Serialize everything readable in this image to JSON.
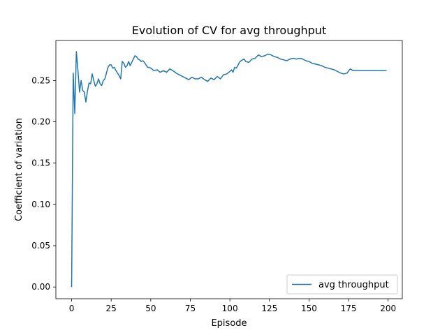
{
  "chart_data": {
    "type": "line",
    "title": "Evolution of CV for avg throughput",
    "xlabel": "Episode",
    "ylabel": "Coefficient of variation",
    "xlim": [
      -9.95,
      208.95
    ],
    "ylim": [
      -0.0142,
      0.2985
    ],
    "xticks": [
      0,
      25,
      50,
      75,
      100,
      125,
      150,
      175,
      200
    ],
    "yticks": [
      0.0,
      0.05,
      0.1,
      0.15,
      0.2,
      0.25
    ],
    "ytick_labels": [
      "0.00",
      "0.05",
      "0.10",
      "0.15",
      "0.20",
      "0.25"
    ],
    "grid": false,
    "legend": {
      "placement": "lower-right"
    },
    "series": [
      {
        "name": "avg throughput",
        "color": "#1f77b4",
        "x": [
          0,
          1,
          2,
          3,
          4,
          5,
          6,
          7,
          8,
          9,
          10,
          11,
          12,
          13,
          14,
          15,
          16,
          17,
          18,
          19,
          20,
          21,
          22,
          23,
          24,
          25,
          26,
          27,
          28,
          29,
          30,
          31,
          32,
          33,
          34,
          35,
          36,
          37,
          38,
          39,
          40,
          41,
          42,
          43,
          44,
          45,
          46,
          47,
          48,
          49,
          50,
          52,
          54,
          56,
          58,
          60,
          62,
          64,
          66,
          68,
          70,
          72,
          74,
          76,
          78,
          80,
          82,
          84,
          86,
          88,
          90,
          92,
          94,
          96,
          98,
          100,
          101,
          102,
          103,
          104,
          105,
          106,
          107,
          108,
          109,
          110,
          112,
          114,
          116,
          118,
          120,
          122,
          124,
          126,
          128,
          130,
          132,
          134,
          136,
          138,
          140,
          142,
          144,
          146,
          148,
          150,
          152,
          154,
          156,
          158,
          160,
          162,
          164,
          166,
          168,
          170,
          172,
          174,
          176,
          178,
          180,
          182,
          184,
          186,
          188,
          190,
          192,
          194,
          196,
          198,
          199
        ],
        "y": [
          0.0,
          0.259,
          0.21,
          0.285,
          0.262,
          0.236,
          0.25,
          0.238,
          0.236,
          0.224,
          0.237,
          0.247,
          0.246,
          0.258,
          0.25,
          0.243,
          0.246,
          0.252,
          0.246,
          0.244,
          0.25,
          0.252,
          0.259,
          0.266,
          0.269,
          0.269,
          0.265,
          0.266,
          0.262,
          0.259,
          0.256,
          0.252,
          0.273,
          0.271,
          0.266,
          0.268,
          0.273,
          0.268,
          0.272,
          0.276,
          0.28,
          0.279,
          0.276,
          0.275,
          0.273,
          0.274,
          0.272,
          0.269,
          0.266,
          0.266,
          0.265,
          0.262,
          0.263,
          0.26,
          0.262,
          0.26,
          0.264,
          0.262,
          0.259,
          0.257,
          0.255,
          0.253,
          0.251,
          0.254,
          0.252,
          0.252,
          0.254,
          0.251,
          0.249,
          0.253,
          0.251,
          0.255,
          0.252,
          0.257,
          0.258,
          0.261,
          0.263,
          0.26,
          0.266,
          0.265,
          0.268,
          0.272,
          0.274,
          0.275,
          0.276,
          0.273,
          0.272,
          0.276,
          0.277,
          0.281,
          0.279,
          0.28,
          0.282,
          0.281,
          0.279,
          0.278,
          0.276,
          0.275,
          0.274,
          0.276,
          0.277,
          0.276,
          0.277,
          0.276,
          0.274,
          0.273,
          0.271,
          0.27,
          0.269,
          0.268,
          0.266,
          0.265,
          0.264,
          0.263,
          0.261,
          0.259,
          0.258,
          0.259,
          0.264,
          0.262,
          0.262,
          0.262,
          0.262,
          0.262,
          0.262,
          0.262,
          0.262,
          0.262,
          0.262,
          0.262,
          0.262
        ]
      }
    ]
  }
}
